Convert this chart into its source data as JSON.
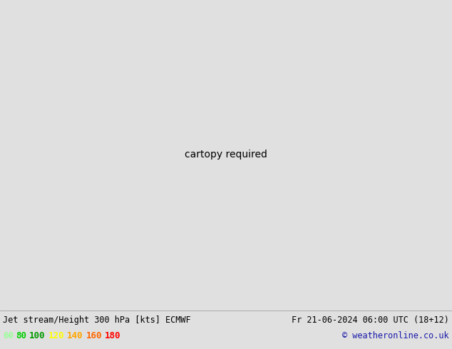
{
  "title_left": "Jet stream/Height 300 hPa [kts] ECMWF",
  "title_right": "Fr 21-06-2024 06:00 UTC (18+12)",
  "copyright": "© weatheronline.co.uk",
  "legend_values": [
    "60",
    "80",
    "100",
    "120",
    "140",
    "160",
    "180"
  ],
  "legend_colors": [
    "#98ff98",
    "#00cd00",
    "#009900",
    "#ffff00",
    "#ffa500",
    "#ff6600",
    "#ff0000"
  ],
  "bg_color": "#e0e0e0",
  "land_color": "#c8e6a0",
  "ocean_color": "#e0e0e0",
  "border_color": "#888888",
  "contour_color": "#000000",
  "jet_levels": [
    60,
    80,
    100,
    120,
    140,
    160,
    180,
    220
  ],
  "jet_fill_colors": [
    "#b8ffb8",
    "#44dd44",
    "#008800",
    "#ffff00",
    "#ffa500",
    "#ff6600",
    "#ff0000"
  ],
  "height_levels": [
    900,
    912,
    924,
    936,
    944,
    948,
    960
  ],
  "map_extent": [
    -170,
    -50,
    20,
    80
  ],
  "proj_lon0": -100,
  "proj_lat0": 50
}
